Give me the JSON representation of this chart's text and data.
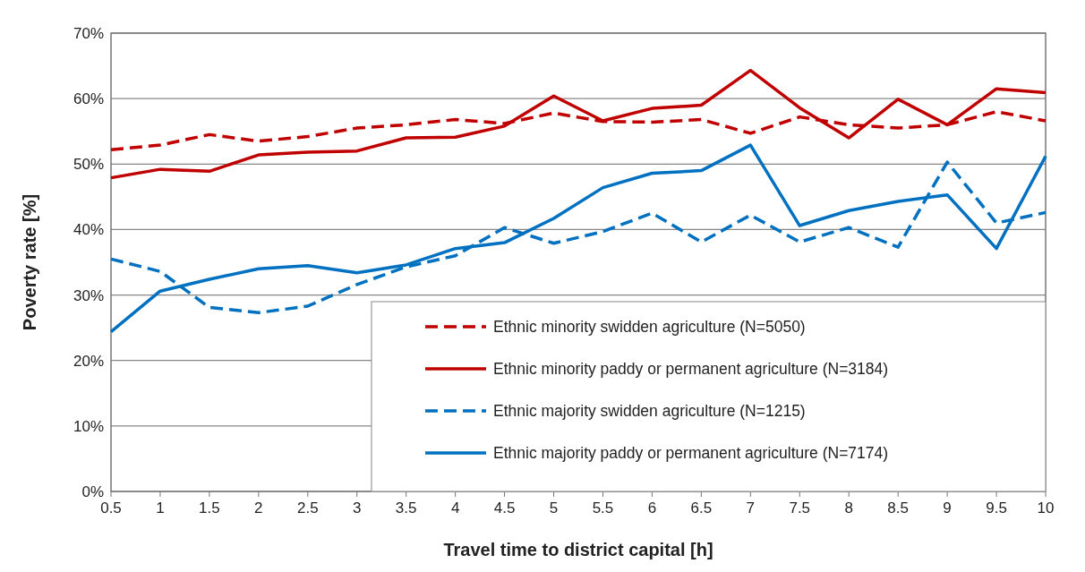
{
  "chart_data": {
    "type": "line",
    "xlabel": "Travel time to district capital [h]",
    "ylabel": "Poverty rate [%]",
    "categories": [
      "0.5",
      "1",
      "1.5",
      "2",
      "2.5",
      "3",
      "3.5",
      "4",
      "4.5",
      "5",
      "5.5",
      "6",
      "6.5",
      "7",
      "7.5",
      "8",
      "8.5",
      "9",
      "9.5",
      "10"
    ],
    "series": [
      {
        "name": "Ethnic minority swidden agriculture (N=5050)",
        "color": "#c00000",
        "line_style": "dashed",
        "values": [
          52.2,
          52.9,
          54.5,
          53.5,
          54.2,
          55.5,
          56,
          56.8,
          56.2,
          57.8,
          56.5,
          56.4,
          56.8,
          54.7,
          57.2,
          56,
          55.5,
          56,
          58,
          56.6
        ]
      },
      {
        "name": "Ethnic minority paddy or permanent agriculture (N=3184)",
        "color": "#c00000",
        "line_style": "solid",
        "values": [
          47.9,
          49.2,
          48.9,
          51.4,
          51.8,
          52,
          54,
          54.1,
          55.8,
          60.4,
          56.6,
          58.5,
          59,
          64.3,
          58.6,
          54,
          59.9,
          56,
          61.5,
          60.9
        ]
      },
      {
        "name": "Ethnic majority swidden agriculture (N=1215)",
        "color": "#0070c0",
        "line_style": "dashed",
        "values": [
          35.5,
          33.6,
          28.1,
          27.3,
          28.3,
          31.6,
          34.3,
          36,
          40.3,
          37.9,
          39.7,
          42.5,
          38.1,
          42.2,
          38.1,
          40.3,
          37.3,
          50.3,
          41,
          42.6
        ]
      },
      {
        "name": "Ethnic majority paddy or permanent agriculture (N=7174)",
        "color": "#0070c0",
        "line_style": "solid",
        "values": [
          24.4,
          30.6,
          32.4,
          34,
          34.5,
          33.4,
          34.6,
          37.1,
          38,
          41.7,
          46.4,
          48.6,
          49,
          52.9,
          40.6,
          42.9,
          44.3,
          45.3,
          37.1,
          51.2
        ]
      }
    ],
    "ylim": [
      0,
      70
    ],
    "yticks": [
      {
        "value": 0,
        "label": "0%"
      },
      {
        "value": 10,
        "label": "10%"
      },
      {
        "value": 20,
        "label": "20%"
      },
      {
        "value": 30,
        "label": "30%"
      },
      {
        "value": 40,
        "label": "40%"
      },
      {
        "value": 50,
        "label": "50%"
      },
      {
        "value": 60,
        "label": "60%"
      },
      {
        "value": 70,
        "label": "70%"
      }
    ],
    "grid": "y",
    "legend": "bottom right",
    "marker": "none"
  }
}
